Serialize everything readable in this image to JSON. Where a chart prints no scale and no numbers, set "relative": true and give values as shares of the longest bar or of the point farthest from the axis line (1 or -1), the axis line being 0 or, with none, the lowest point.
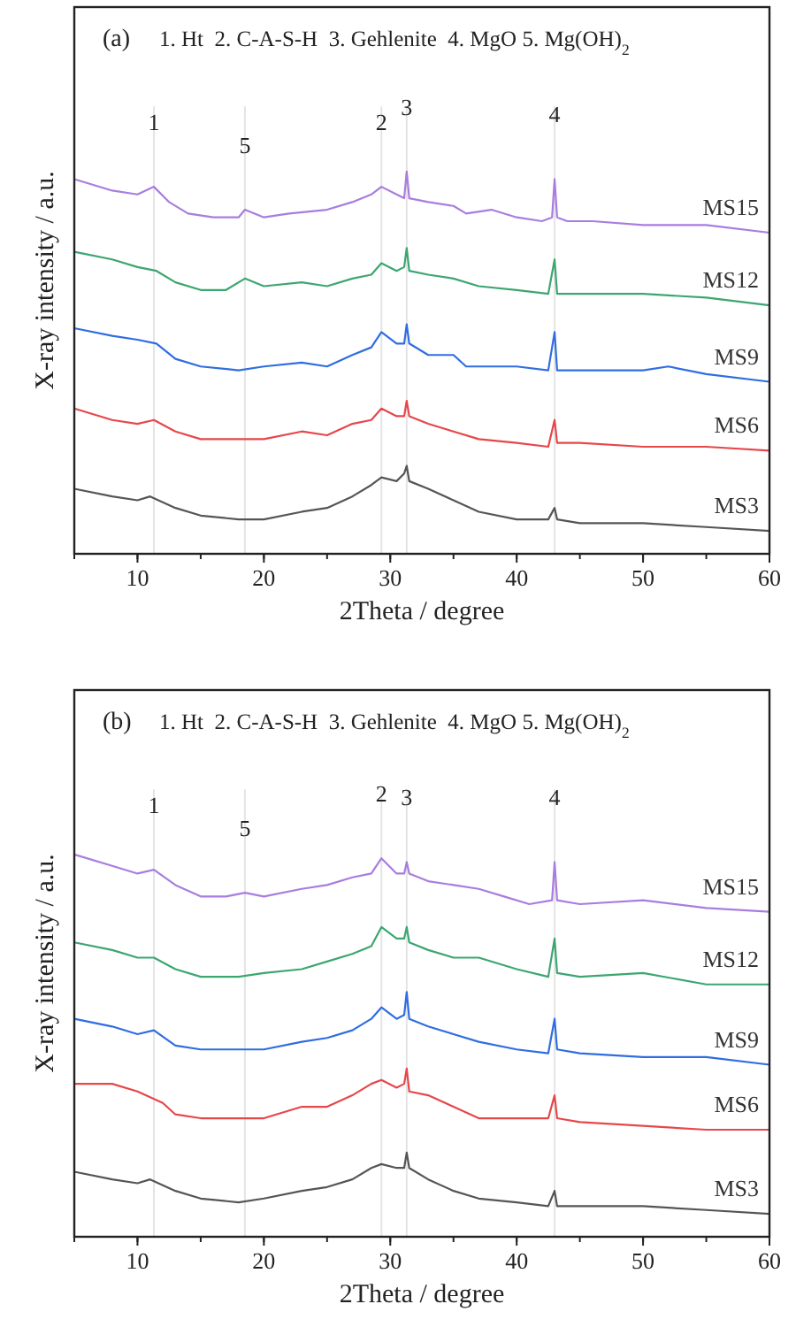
{
  "chart_data": [
    {
      "type": "line",
      "title": "(a)",
      "annotations": [
        "1. Ht  2. C-A-S-H  3. Gehlenite  4. MgO 5. Mg(OH)$_{2}$",
        {
          "text": "1",
          "x": 11.3,
          "y": 0.96
        },
        {
          "text": "5",
          "x": 18.5,
          "y": 0.9
        },
        {
          "text": "2",
          "x": 29.3,
          "y": 0.96
        },
        {
          "text": "3",
          "x": 31.3,
          "y": 1.0
        },
        {
          "text": "4",
          "x": 43,
          "y": 0.98
        }
      ],
      "xlabel": "2Theta / degree",
      "ylabel": "X-ray intensity / a.u.",
      "relative": true,
      "xlim": [
        5,
        60
      ],
      "xticks": [
        10,
        20,
        30,
        40,
        50,
        60
      ],
      "tick_labels": "x",
      "legend": false,
      "grid": false,
      "ref_lines": [
        {
          "axis": "x",
          "value": 11.3,
          "color": "#e4e4e4"
        },
        {
          "axis": "x",
          "value": 18.5,
          "color": "#e4e4e4"
        },
        {
          "axis": "x",
          "value": 29.3,
          "color": "#e4e4e4"
        },
        {
          "axis": "x",
          "value": 31.3,
          "color": "#e4e4e4"
        },
        {
          "axis": "x",
          "value": 43,
          "color": "#e4e4e4"
        }
      ],
      "series": [
        {
          "name": "MS15",
          "color": "#a87ddf",
          "x": [
            5,
            8,
            10,
            11.3,
            12.5,
            14,
            16,
            18,
            18.5,
            20,
            22,
            25,
            27,
            28.5,
            29.3,
            30.5,
            31.1,
            31.3,
            31.5,
            33,
            35,
            36,
            38,
            40,
            42,
            42.8,
            43,
            43.2,
            44,
            46,
            50,
            55,
            60
          ],
          "values": [
            0.98,
            0.95,
            0.94,
            0.96,
            0.92,
            0.89,
            0.88,
            0.88,
            0.9,
            0.88,
            0.89,
            0.9,
            0.92,
            0.94,
            0.96,
            0.94,
            0.93,
            1.0,
            0.93,
            0.92,
            0.91,
            0.89,
            0.9,
            0.88,
            0.87,
            0.88,
            0.98,
            0.88,
            0.87,
            0.87,
            0.86,
            0.86,
            0.84
          ]
        },
        {
          "name": "MS12",
          "color": "#3ca670",
          "x": [
            5,
            8,
            10,
            11.5,
            13,
            15,
            17,
            18.5,
            20,
            23,
            25,
            27,
            28.5,
            29.3,
            30.5,
            31.1,
            31.3,
            31.5,
            33,
            35,
            37,
            40,
            42.5,
            43,
            43.2,
            45,
            50,
            55,
            60
          ],
          "values": [
            0.79,
            0.77,
            0.75,
            0.74,
            0.71,
            0.69,
            0.69,
            0.72,
            0.7,
            0.71,
            0.7,
            0.72,
            0.73,
            0.76,
            0.74,
            0.75,
            0.8,
            0.74,
            0.73,
            0.72,
            0.7,
            0.69,
            0.68,
            0.77,
            0.68,
            0.68,
            0.68,
            0.67,
            0.65
          ]
        },
        {
          "name": "MS9",
          "color": "#2f6de0",
          "x": [
            5,
            8,
            10,
            11.5,
            13,
            15,
            18,
            20,
            23,
            25,
            27,
            28.5,
            29.3,
            30.5,
            31.1,
            31.3,
            31.5,
            33,
            35,
            36,
            38,
            40,
            42.5,
            43,
            43.2,
            45,
            50,
            52,
            55,
            60
          ],
          "values": [
            0.59,
            0.57,
            0.56,
            0.55,
            0.51,
            0.49,
            0.48,
            0.49,
            0.5,
            0.49,
            0.52,
            0.54,
            0.58,
            0.55,
            0.55,
            0.6,
            0.55,
            0.52,
            0.52,
            0.49,
            0.49,
            0.49,
            0.48,
            0.58,
            0.48,
            0.48,
            0.48,
            0.49,
            0.47,
            0.45
          ]
        },
        {
          "name": "MS6",
          "color": "#e6474a",
          "x": [
            5,
            8,
            10,
            11.3,
            13,
            15,
            18,
            20,
            23,
            25,
            27,
            28.5,
            29.3,
            30.5,
            31.1,
            31.3,
            31.5,
            33,
            35,
            37,
            40,
            42.5,
            43,
            43.2,
            45,
            50,
            55,
            60
          ],
          "values": [
            0.38,
            0.35,
            0.34,
            0.35,
            0.32,
            0.3,
            0.3,
            0.3,
            0.32,
            0.31,
            0.34,
            0.35,
            0.38,
            0.36,
            0.36,
            0.4,
            0.36,
            0.34,
            0.32,
            0.3,
            0.29,
            0.28,
            0.35,
            0.29,
            0.29,
            0.28,
            0.28,
            0.27
          ]
        },
        {
          "name": "MS3",
          "color": "#555555",
          "x": [
            5,
            8,
            10,
            11,
            13,
            15,
            18,
            20,
            23,
            25,
            27,
            28.5,
            29.3,
            30.5,
            31.1,
            31.3,
            31.5,
            33,
            35,
            37,
            40,
            42.5,
            43,
            43.2,
            45,
            50,
            55,
            60
          ],
          "values": [
            0.17,
            0.15,
            0.14,
            0.15,
            0.12,
            0.1,
            0.09,
            0.09,
            0.11,
            0.12,
            0.15,
            0.18,
            0.2,
            0.19,
            0.21,
            0.23,
            0.19,
            0.17,
            0.14,
            0.11,
            0.09,
            0.09,
            0.12,
            0.09,
            0.08,
            0.08,
            0.07,
            0.06
          ]
        }
      ]
    },
    {
      "type": "line",
      "title": "(b)",
      "annotations": [
        "1. Ht  2. C-A-S-H  3. Gehlenite  4. MgO 5. Mg(OH)$_{2}$",
        {
          "text": "1",
          "x": 11.3,
          "y": 0.96
        },
        {
          "text": "5",
          "x": 18.5,
          "y": 0.9
        },
        {
          "text": "2",
          "x": 29.3,
          "y": 0.99
        },
        {
          "text": "3",
          "x": 31.3,
          "y": 0.98
        },
        {
          "text": "4",
          "x": 43,
          "y": 0.98
        }
      ],
      "xlabel": "2Theta / degree",
      "ylabel": "X-ray intensity / a.u.",
      "relative": true,
      "xlim": [
        5,
        60
      ],
      "xticks": [
        10,
        20,
        30,
        40,
        50,
        60
      ],
      "tick_labels": "x",
      "legend": false,
      "grid": false,
      "ref_lines": [
        {
          "axis": "x",
          "value": 11.3,
          "color": "#e4e4e4"
        },
        {
          "axis": "x",
          "value": 18.5,
          "color": "#e4e4e4"
        },
        {
          "axis": "x",
          "value": 29.3,
          "color": "#e4e4e4"
        },
        {
          "axis": "x",
          "value": 31.3,
          "color": "#e4e4e4"
        },
        {
          "axis": "x",
          "value": 43,
          "color": "#e4e4e4"
        }
      ],
      "series": [
        {
          "name": "MS15",
          "color": "#a87ddf",
          "x": [
            5,
            8,
            10,
            11.3,
            13,
            15,
            17,
            18.5,
            20,
            23,
            25,
            27,
            28.5,
            29.3,
            30.5,
            31.1,
            31.3,
            31.5,
            33,
            35,
            37,
            39,
            41,
            42.8,
            43,
            43.2,
            45,
            50,
            55,
            60
          ],
          "values": [
            1.0,
            0.97,
            0.95,
            0.96,
            0.92,
            0.89,
            0.89,
            0.9,
            0.89,
            0.91,
            0.92,
            0.94,
            0.95,
            0.99,
            0.95,
            0.95,
            0.98,
            0.95,
            0.93,
            0.92,
            0.91,
            0.89,
            0.87,
            0.88,
            0.98,
            0.88,
            0.87,
            0.88,
            0.86,
            0.85
          ]
        },
        {
          "name": "MS12",
          "color": "#3ca670",
          "x": [
            5,
            8,
            10,
            11.3,
            13,
            15,
            18,
            20,
            23,
            25,
            27,
            28.5,
            29.3,
            30.5,
            31.1,
            31.3,
            31.5,
            33,
            35,
            37,
            40,
            42.5,
            43,
            43.2,
            45,
            50,
            55,
            60
          ],
          "values": [
            0.77,
            0.75,
            0.73,
            0.73,
            0.7,
            0.68,
            0.68,
            0.69,
            0.7,
            0.72,
            0.74,
            0.76,
            0.81,
            0.78,
            0.78,
            0.81,
            0.77,
            0.75,
            0.73,
            0.73,
            0.7,
            0.68,
            0.78,
            0.69,
            0.68,
            0.69,
            0.66,
            0.66
          ]
        },
        {
          "name": "MS9",
          "color": "#2f6de0",
          "x": [
            5,
            8,
            10,
            11.3,
            13,
            15,
            18,
            20,
            23,
            25,
            27,
            28.5,
            29.3,
            30.5,
            31.1,
            31.3,
            31.5,
            33,
            35,
            37,
            40,
            42.5,
            43,
            43.2,
            45,
            50,
            55,
            60
          ],
          "values": [
            0.57,
            0.55,
            0.53,
            0.54,
            0.5,
            0.49,
            0.49,
            0.49,
            0.51,
            0.52,
            0.54,
            0.57,
            0.6,
            0.57,
            0.58,
            0.64,
            0.57,
            0.55,
            0.53,
            0.51,
            0.49,
            0.48,
            0.57,
            0.49,
            0.48,
            0.47,
            0.47,
            0.45
          ]
        },
        {
          "name": "MS6",
          "color": "#e6474a",
          "x": [
            5,
            8,
            10,
            12,
            13,
            15,
            18,
            20,
            23,
            25,
            27,
            28.5,
            29.3,
            30.5,
            31.1,
            31.3,
            31.5,
            33,
            35,
            37,
            40,
            42.5,
            43,
            43.2,
            45,
            50,
            55,
            60
          ],
          "values": [
            0.4,
            0.4,
            0.38,
            0.35,
            0.32,
            0.31,
            0.31,
            0.31,
            0.34,
            0.34,
            0.37,
            0.4,
            0.41,
            0.39,
            0.4,
            0.44,
            0.38,
            0.37,
            0.34,
            0.31,
            0.31,
            0.31,
            0.37,
            0.31,
            0.3,
            0.29,
            0.28,
            0.28
          ]
        },
        {
          "name": "MS3",
          "color": "#555555",
          "x": [
            5,
            8,
            10,
            11,
            13,
            15,
            18,
            20,
            23,
            25,
            27,
            28.5,
            29.3,
            30.5,
            31.1,
            31.3,
            31.5,
            33,
            35,
            37,
            40,
            42.5,
            43,
            43.2,
            45,
            50,
            55,
            60
          ],
          "values": [
            0.17,
            0.15,
            0.14,
            0.15,
            0.12,
            0.1,
            0.09,
            0.1,
            0.12,
            0.13,
            0.15,
            0.18,
            0.19,
            0.18,
            0.18,
            0.22,
            0.18,
            0.15,
            0.12,
            0.1,
            0.09,
            0.08,
            0.12,
            0.08,
            0.08,
            0.08,
            0.07,
            0.06
          ]
        }
      ]
    }
  ]
}
